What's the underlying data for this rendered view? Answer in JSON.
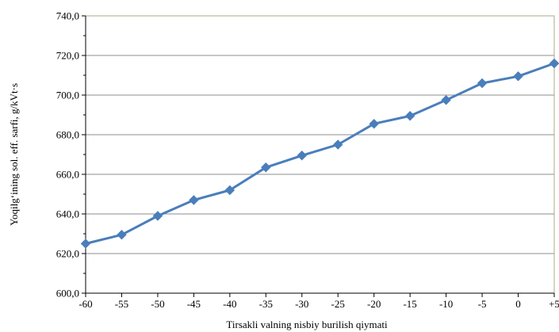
{
  "chart_data": {
    "type": "line",
    "title": "",
    "xlabel": "Tirsakli valning nisbiy burilish qiymati",
    "ylabel": "Yoqilg‘ining sol. eff. sarfi, g/kVt·s",
    "x_tick_labels": [
      "-60",
      "-55",
      "-50",
      "-45",
      "-40",
      "-35",
      "-30",
      "-25",
      "-20",
      "-15",
      "-10",
      "-5",
      "0",
      "+5"
    ],
    "x": [
      -60,
      -55,
      -50,
      -45,
      -40,
      -35,
      -30,
      -25,
      -20,
      -15,
      -10,
      -5,
      0,
      5
    ],
    "y_ticks": [
      "600,0",
      "620,0",
      "640,0",
      "660,0",
      "680,0",
      "700,0",
      "720,0",
      "740,0"
    ],
    "ylim": [
      600,
      740
    ],
    "xlim": [
      -60,
      5
    ],
    "grid": "horizontal",
    "legend": "none",
    "series": [
      {
        "values": [
          625.0,
          629.5,
          639.0,
          647.0,
          652.0,
          663.5,
          669.5,
          675.0,
          685.5,
          689.5,
          697.5,
          706.0,
          709.5,
          716.0
        ],
        "color": "#4a7ebb",
        "marker": "diamond"
      }
    ]
  },
  "colors": {
    "line": "#4a7ebb",
    "plot_border": "#a8a888",
    "grid": "#8c8c8c"
  }
}
